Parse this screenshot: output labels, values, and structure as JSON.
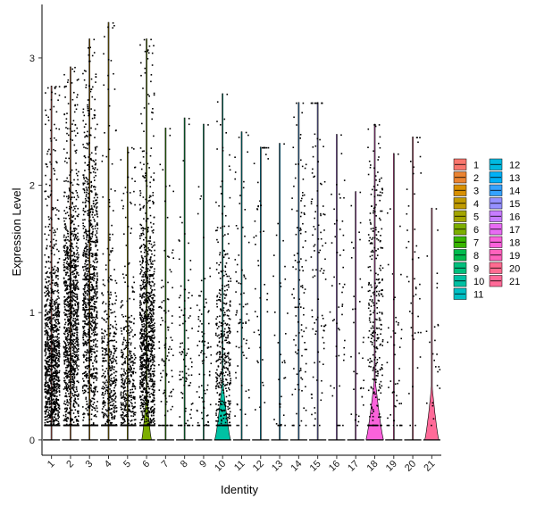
{
  "chart_data": {
    "type": "violin",
    "title": "",
    "xlabel": "Identity",
    "ylabel": "Expression Level",
    "ylim": [
      -0.12,
      3.42
    ],
    "y_ticks": [
      0,
      1,
      2,
      3
    ],
    "categories": [
      "1",
      "2",
      "3",
      "4",
      "5",
      "6",
      "7",
      "8",
      "9",
      "10",
      "11",
      "12",
      "13",
      "14",
      "15",
      "16",
      "17",
      "18",
      "19",
      "20",
      "21"
    ],
    "colors": [
      "#F8766D",
      "#EA8331",
      "#D89000",
      "#C09B00",
      "#A3A500",
      "#7CAE00",
      "#39B600",
      "#00BB4E",
      "#00BF7D",
      "#00C1A3",
      "#00BFC4",
      "#00BAE0",
      "#00B0F6",
      "#35A2FF",
      "#9590FF",
      "#C77CFF",
      "#E76BF3",
      "#FA62DB",
      "#FF62BC",
      "#FF6C91",
      "#FF6A98"
    ],
    "series": [
      {
        "category": "1",
        "max": 2.78,
        "points": 1200,
        "mode": 0.55,
        "violin_peak": 0.0
      },
      {
        "category": "2",
        "max": 2.93,
        "points": 1150,
        "mode": 0.9,
        "violin_peak": 0.0
      },
      {
        "category": "3",
        "max": 3.15,
        "points": 1000,
        "mode": 1.1,
        "violin_peak": 0.0
      },
      {
        "category": "4",
        "max": 3.28,
        "points": 500,
        "mode": 0.45,
        "violin_peak": 0.0
      },
      {
        "category": "5",
        "max": 2.3,
        "points": 480,
        "mode": 0.35,
        "violin_peak": 0.0
      },
      {
        "category": "6",
        "max": 3.15,
        "points": 1100,
        "mode": 0.7,
        "violin_peak": 0.55
      },
      {
        "category": "7",
        "max": 2.45,
        "points": 110,
        "mode": 0.6,
        "violin_peak": 0.0
      },
      {
        "category": "8",
        "max": 2.53,
        "points": 95,
        "mode": 0.6,
        "violin_peak": 0.0
      },
      {
        "category": "9",
        "max": 2.48,
        "points": 90,
        "mode": 0.55,
        "violin_peak": 0.0
      },
      {
        "category": "10",
        "max": 2.72,
        "points": 420,
        "mode": 0.6,
        "violin_peak": 0.9
      },
      {
        "category": "11",
        "max": 2.42,
        "points": 75,
        "mode": 0.9,
        "violin_peak": 0.0
      },
      {
        "category": "12",
        "max": 2.3,
        "points": 45,
        "mode": 1.6,
        "violin_peak": 0.0
      },
      {
        "category": "13",
        "max": 2.33,
        "points": 35,
        "mode": 0.7,
        "violin_peak": 0.0
      },
      {
        "category": "14",
        "max": 2.65,
        "points": 110,
        "mode": 1.2,
        "violin_peak": 0.0
      },
      {
        "category": "15",
        "max": 2.65,
        "points": 100,
        "mode": 1.4,
        "violin_peak": 0.0
      },
      {
        "category": "16",
        "max": 2.4,
        "points": 50,
        "mode": 1.0,
        "violin_peak": 0.0
      },
      {
        "category": "17",
        "max": 1.95,
        "points": 35,
        "mode": 0.9,
        "violin_peak": 0.0
      },
      {
        "category": "18",
        "max": 2.48,
        "points": 300,
        "mode": 1.0,
        "violin_peak": 1.0
      },
      {
        "category": "19",
        "max": 2.25,
        "points": 50,
        "mode": 0.5,
        "violin_peak": 0.0
      },
      {
        "category": "20",
        "max": 2.38,
        "points": 45,
        "mode": 1.3,
        "violin_peak": 0.0
      },
      {
        "category": "21",
        "max": 1.82,
        "points": 25,
        "mode": 0.8,
        "violin_peak": 0.8
      }
    ],
    "legend": {
      "position": "right",
      "columns": [
        [
          "1",
          "2",
          "3",
          "4",
          "5",
          "6",
          "7",
          "8",
          "9",
          "10",
          "11"
        ],
        [
          "12",
          "13",
          "14",
          "15",
          "16",
          "17",
          "18",
          "19",
          "20",
          "21"
        ]
      ]
    }
  }
}
